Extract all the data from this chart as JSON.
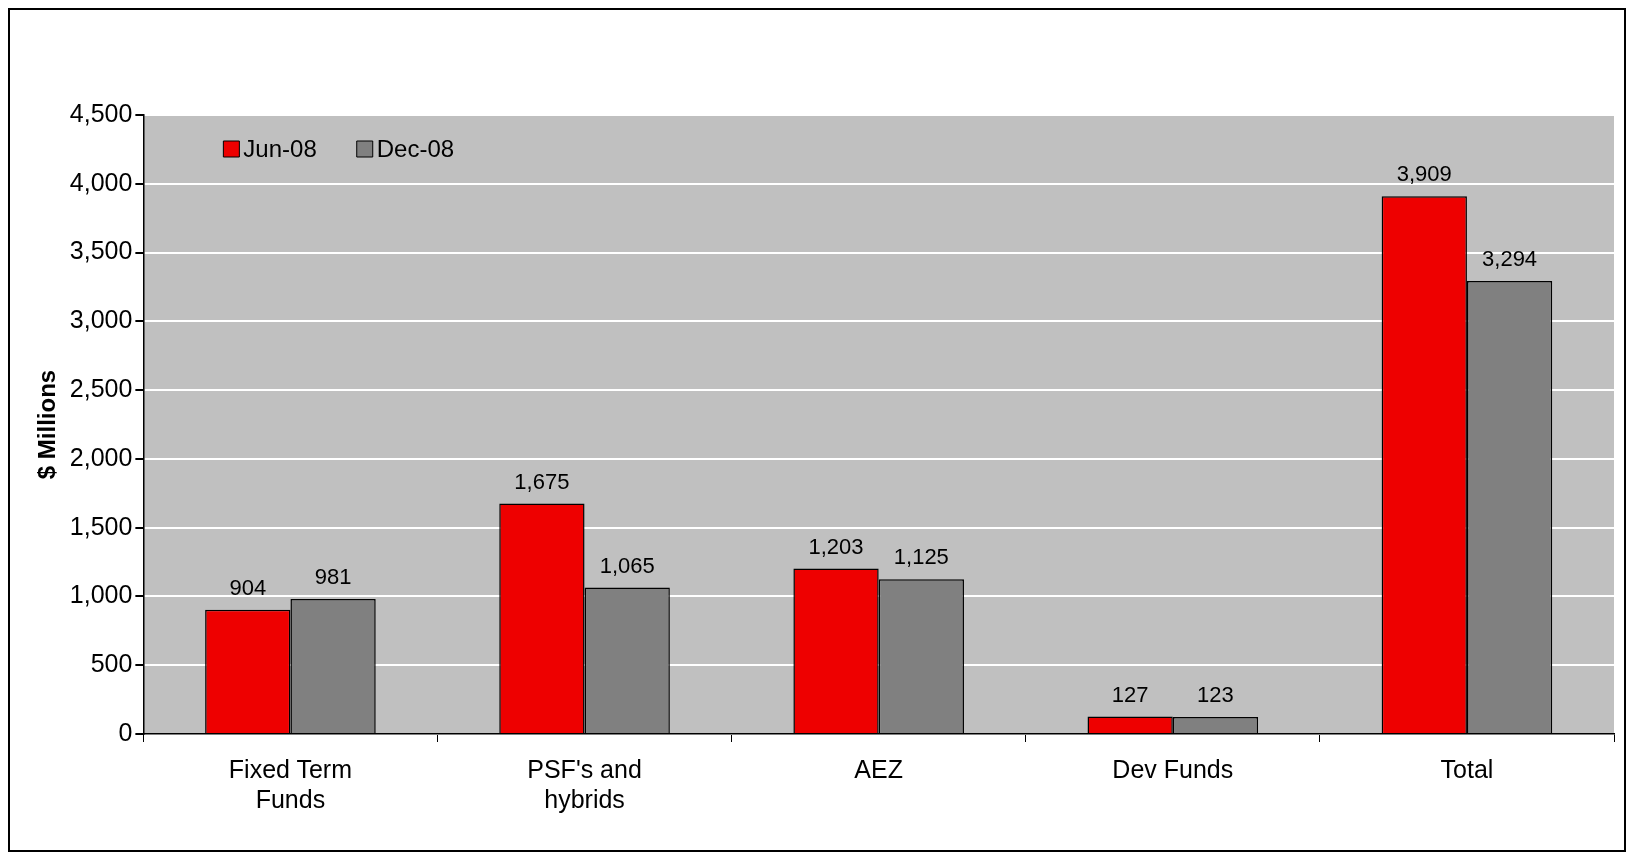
{
  "chart_data": {
    "type": "bar",
    "ylabel": "$ Millions",
    "categories": [
      "Fixed Term Funds",
      "PSF's and hybrids",
      "AEZ",
      "Dev Funds",
      "Total"
    ],
    "series": [
      {
        "name": "Jun-08",
        "color": "#ee0000",
        "values": [
          904,
          1675,
          1203,
          127,
          3909
        ],
        "value_labels": [
          "904",
          "1,675",
          "1,203",
          "127",
          "3,909"
        ]
      },
      {
        "name": "Dec-08",
        "color": "#808080",
        "values": [
          981,
          1065,
          1125,
          123,
          3294
        ],
        "value_labels": [
          "981",
          "1,065",
          "1,125",
          "123",
          "3,294"
        ]
      }
    ],
    "ylim": [
      0,
      4500
    ],
    "yticks": [
      {
        "value": 0,
        "label": "0"
      },
      {
        "value": 500,
        "label": "500"
      },
      {
        "value": 1000,
        "label": "1,000"
      },
      {
        "value": 1500,
        "label": "1,500"
      },
      {
        "value": 2000,
        "label": "2,000"
      },
      {
        "value": 2500,
        "label": "2,500"
      },
      {
        "value": 3000,
        "label": "3,000"
      },
      {
        "value": 3500,
        "label": "3,500"
      },
      {
        "value": 4000,
        "label": "4,000"
      },
      {
        "value": 4500,
        "label": "4,500"
      }
    ],
    "grid": "y",
    "legend": "top left"
  }
}
